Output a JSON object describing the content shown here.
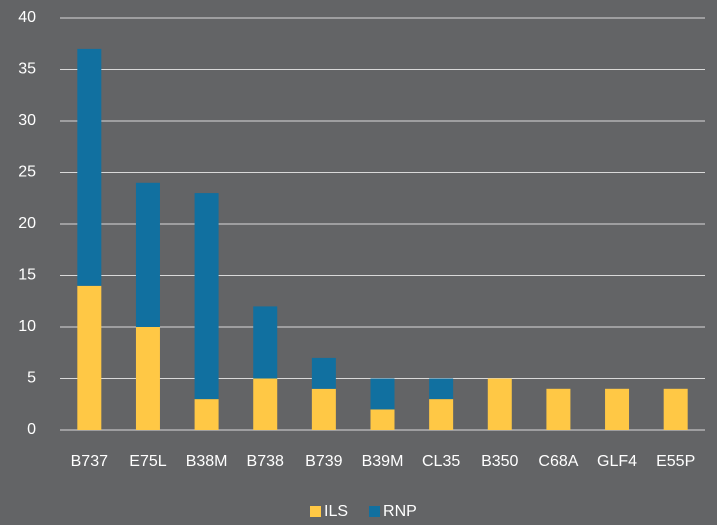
{
  "chart_data": {
    "type": "stacked_bar",
    "categories": [
      "B737",
      "E75L",
      "B38M",
      "B738",
      "B739",
      "B39M",
      "CL35",
      "B350",
      "C68A",
      "GLF4",
      "E55P"
    ],
    "series": [
      {
        "name": "ILS",
        "color": "#ffc845",
        "values": [
          14,
          10,
          3,
          5,
          4,
          2,
          3,
          5,
          4,
          4,
          4
        ]
      },
      {
        "name": "RNP",
        "color": "#1170a0",
        "values": [
          23,
          14,
          20,
          7,
          3,
          3,
          2,
          0,
          0,
          0,
          0
        ]
      }
    ],
    "ylim": [
      0,
      40
    ],
    "yticks": [
      0,
      5,
      10,
      15,
      20,
      25,
      30,
      35,
      40
    ],
    "grid": true,
    "legend": "bottom"
  }
}
